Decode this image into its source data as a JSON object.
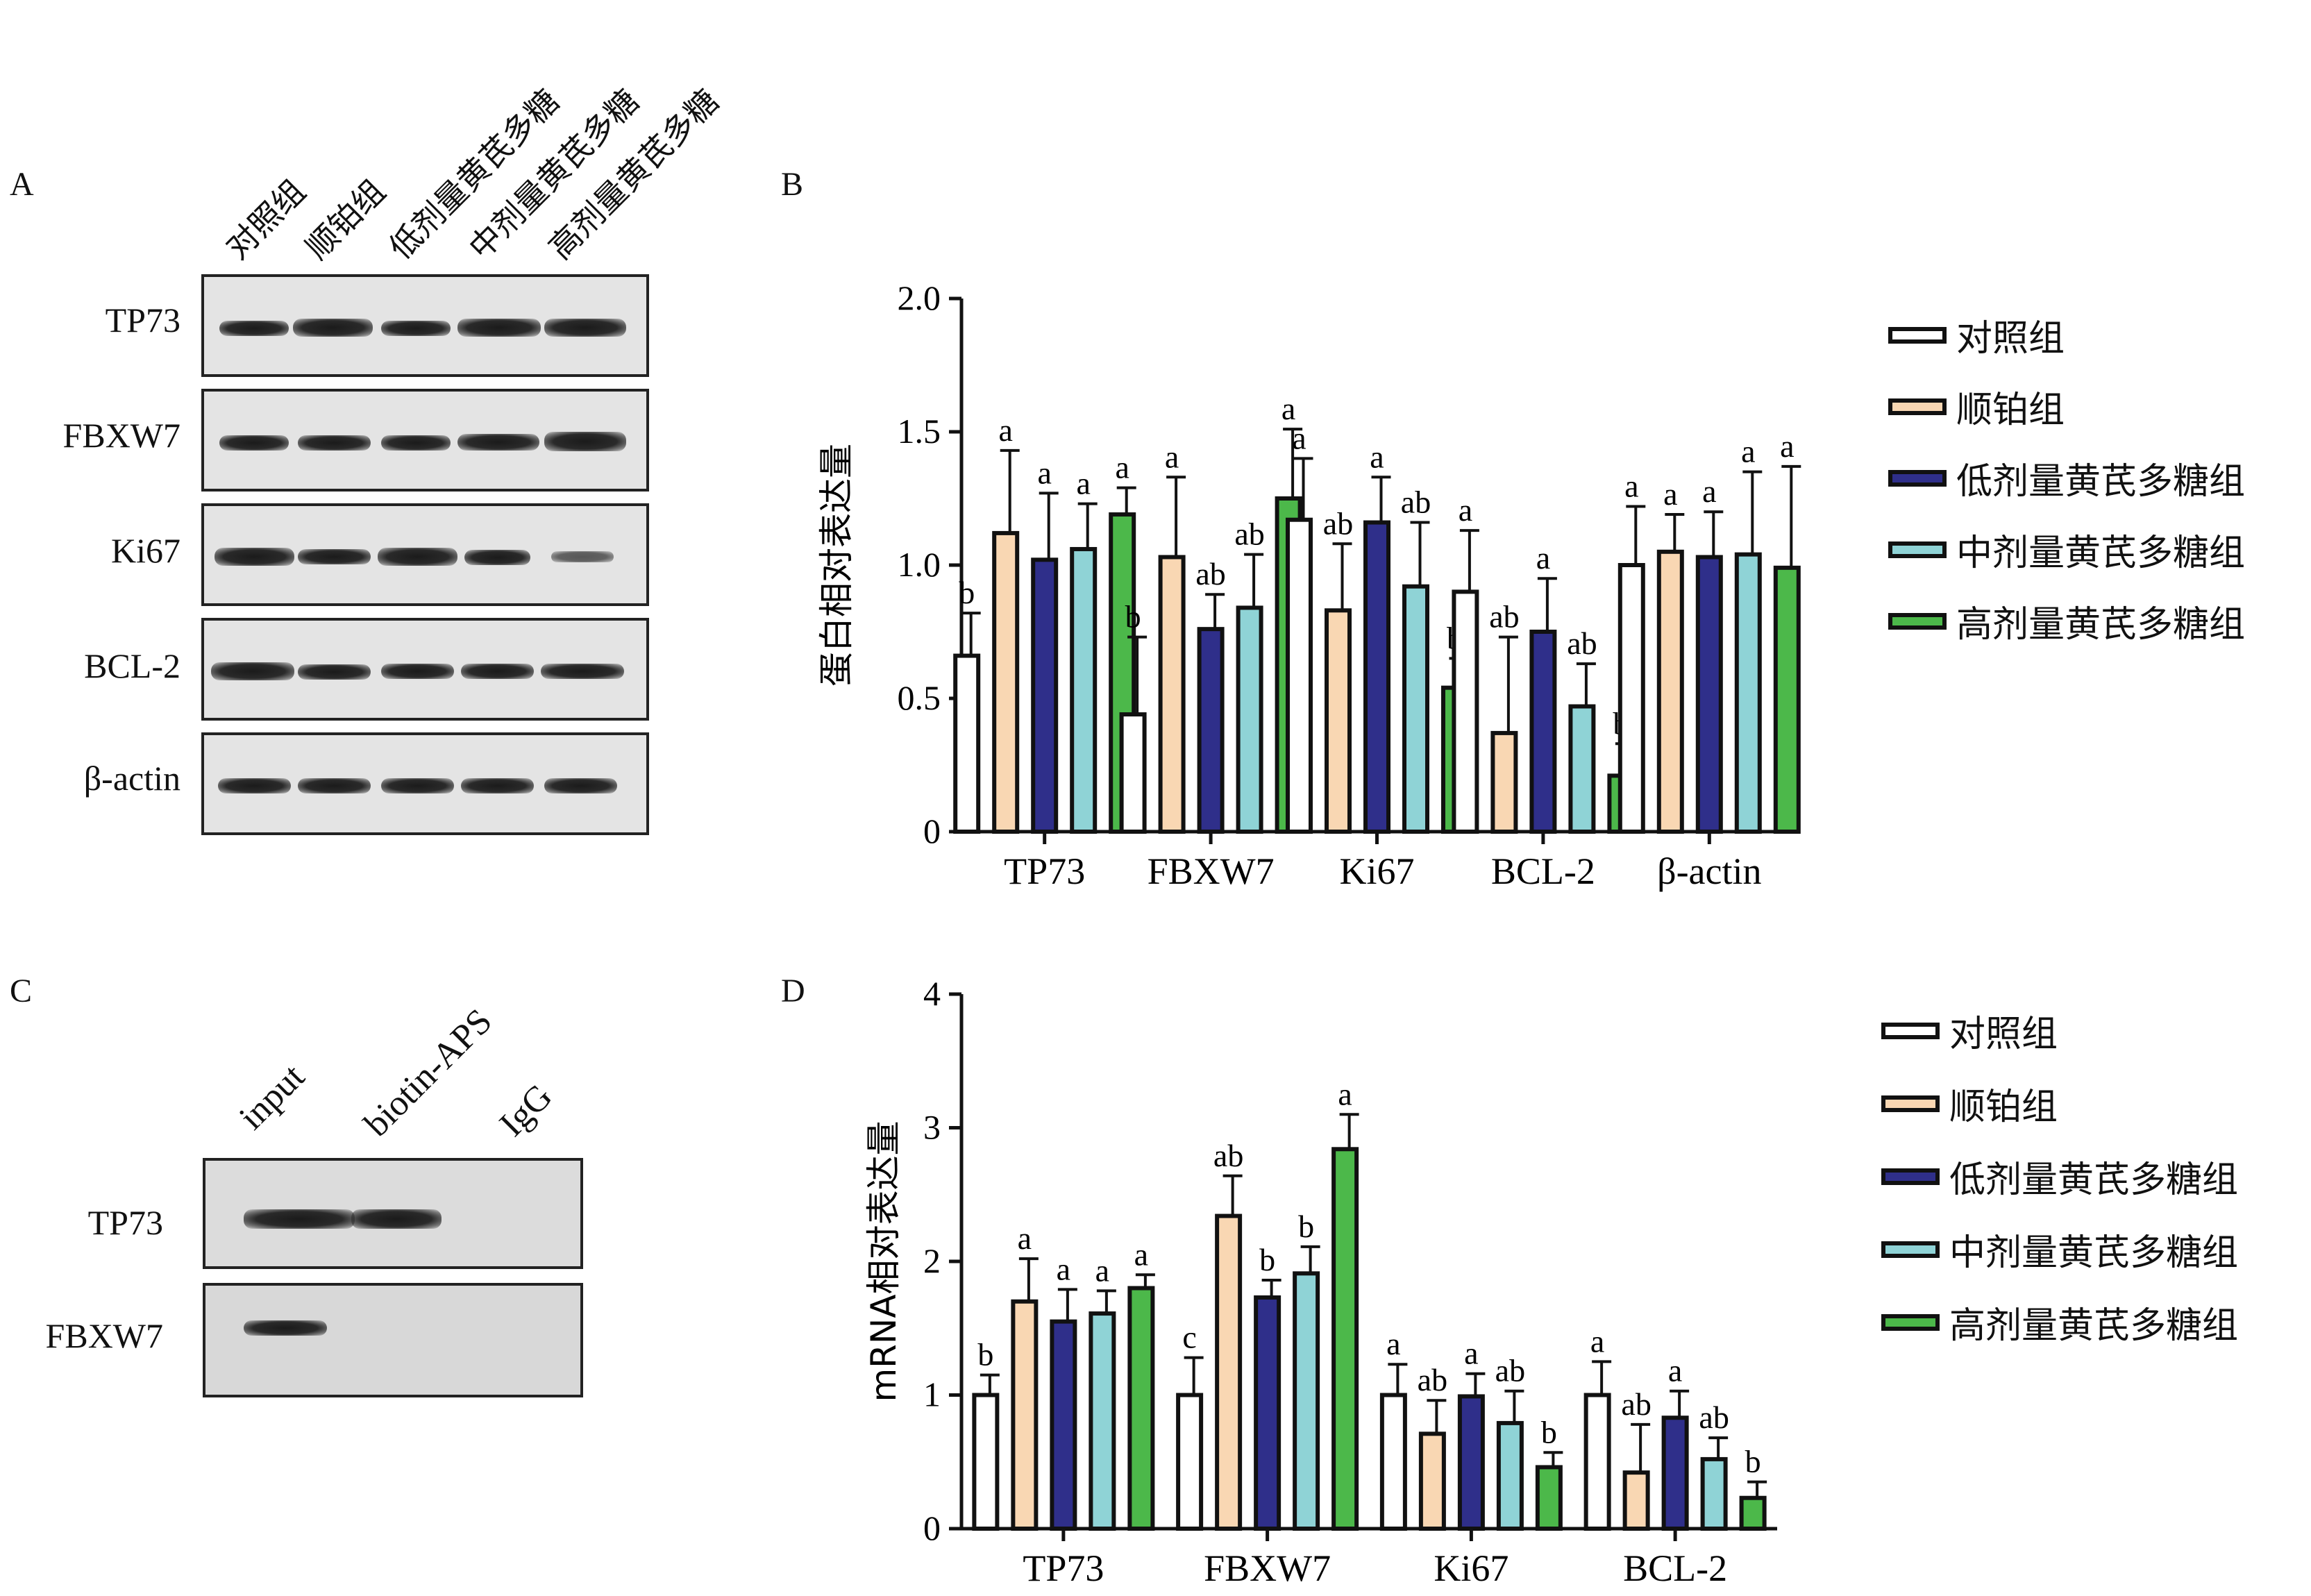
{
  "panels": {
    "A": "A",
    "B": "B",
    "C": "C",
    "D": "D"
  },
  "blot_a": {
    "lanes": [
      "对照组",
      "顺铂组",
      "低剂量黄芪多糖",
      "中剂量黄芪多糖",
      "高剂量黄芪多糖"
    ],
    "rows": [
      "TP73",
      "FBXW7",
      "Ki67",
      "BCL-2",
      "β-actin"
    ]
  },
  "blot_c": {
    "lanes": [
      "input",
      "biotin-APS",
      "IgG"
    ],
    "rows": [
      "TP73",
      "FBXW7"
    ]
  },
  "colors": {
    "groups": [
      "#ffffff",
      "#f9d7b3",
      "#2f2f8a",
      "#8fd3d6",
      "#4cb84a"
    ],
    "edge": "#111111"
  },
  "legend": [
    "对照组",
    "顺铂组",
    "低剂量黄芪多糖组",
    "中剂量黄芪多糖组",
    "高剂量黄芪多糖组"
  ],
  "chart_data": [
    {
      "type": "bar",
      "panel": "B",
      "ylabel": "蛋白相对表达量",
      "ylim": [
        0,
        2.0
      ],
      "yticks": [
        "0",
        "0.5",
        "1.0",
        "1.5",
        "2.0"
      ],
      "categories": [
        "TP73",
        "FBXW7",
        "Ki67",
        "BCL-2",
        "β-actin"
      ],
      "series": [
        {
          "name": "对照组",
          "values": [
            0.66,
            0.44,
            1.17,
            0.9,
            1.0
          ],
          "errors": [
            0.16,
            0.29,
            0.23,
            0.23,
            0.22
          ],
          "labels": [
            "b",
            "b",
            "a",
            "a",
            "a"
          ]
        },
        {
          "name": "顺铂组",
          "values": [
            1.12,
            1.03,
            0.83,
            0.37,
            1.05
          ],
          "errors": [
            0.31,
            0.3,
            0.25,
            0.36,
            0.14
          ],
          "labels": [
            "a",
            "a",
            "ab",
            "ab",
            "a"
          ]
        },
        {
          "name": "低剂量黄芪多糖组",
          "values": [
            1.02,
            0.76,
            1.16,
            0.75,
            1.03
          ],
          "errors": [
            0.25,
            0.13,
            0.17,
            0.2,
            0.17
          ],
          "labels": [
            "a",
            "ab",
            "a",
            "a",
            "a"
          ]
        },
        {
          "name": "中剂量黄芪多糖组",
          "values": [
            1.06,
            0.84,
            0.92,
            0.47,
            1.04
          ],
          "errors": [
            0.17,
            0.2,
            0.24,
            0.16,
            0.31
          ],
          "labels": [
            "a",
            "ab",
            "ab",
            "ab",
            "a"
          ]
        },
        {
          "name": "高剂量黄芪多糖组",
          "values": [
            1.19,
            1.25,
            0.54,
            0.21,
            0.99
          ],
          "errors": [
            0.1,
            0.26,
            0.11,
            0.12,
            0.38
          ],
          "labels": [
            "a",
            "a",
            "b",
            "b",
            "a"
          ]
        }
      ]
    },
    {
      "type": "bar",
      "panel": "D",
      "ylabel": "mRNA相对表达量",
      "ylim": [
        0,
        4
      ],
      "yticks": [
        "0",
        "1",
        "2",
        "3",
        "4"
      ],
      "categories": [
        "TP73",
        "FBXW7",
        "Ki67",
        "BCL-2"
      ],
      "series": [
        {
          "name": "对照组",
          "values": [
            1.0,
            1.0,
            1.0,
            1.0
          ],
          "errors": [
            0.15,
            0.28,
            0.23,
            0.25
          ],
          "labels": [
            "b",
            "c",
            "a",
            "a"
          ]
        },
        {
          "name": "顺铂组",
          "values": [
            1.7,
            2.34,
            0.71,
            0.42
          ],
          "errors": [
            0.32,
            0.3,
            0.25,
            0.36
          ],
          "labels": [
            "a",
            "ab",
            "ab",
            "ab"
          ]
        },
        {
          "name": "低剂量黄芪多糖组",
          "values": [
            1.55,
            1.73,
            0.99,
            0.83
          ],
          "errors": [
            0.24,
            0.13,
            0.17,
            0.2
          ],
          "labels": [
            "a",
            "b",
            "a",
            "a"
          ]
        },
        {
          "name": "中剂量黄芪多糖组",
          "values": [
            1.61,
            1.91,
            0.79,
            0.52
          ],
          "errors": [
            0.17,
            0.2,
            0.24,
            0.16
          ],
          "labels": [
            "a",
            "b",
            "ab",
            "ab"
          ]
        },
        {
          "name": "高剂量黄芪多糖组",
          "values": [
            1.8,
            2.84,
            0.46,
            0.23
          ],
          "errors": [
            0.1,
            0.26,
            0.11,
            0.12
          ],
          "labels": [
            "a",
            "a",
            "b",
            "b"
          ]
        }
      ]
    }
  ]
}
